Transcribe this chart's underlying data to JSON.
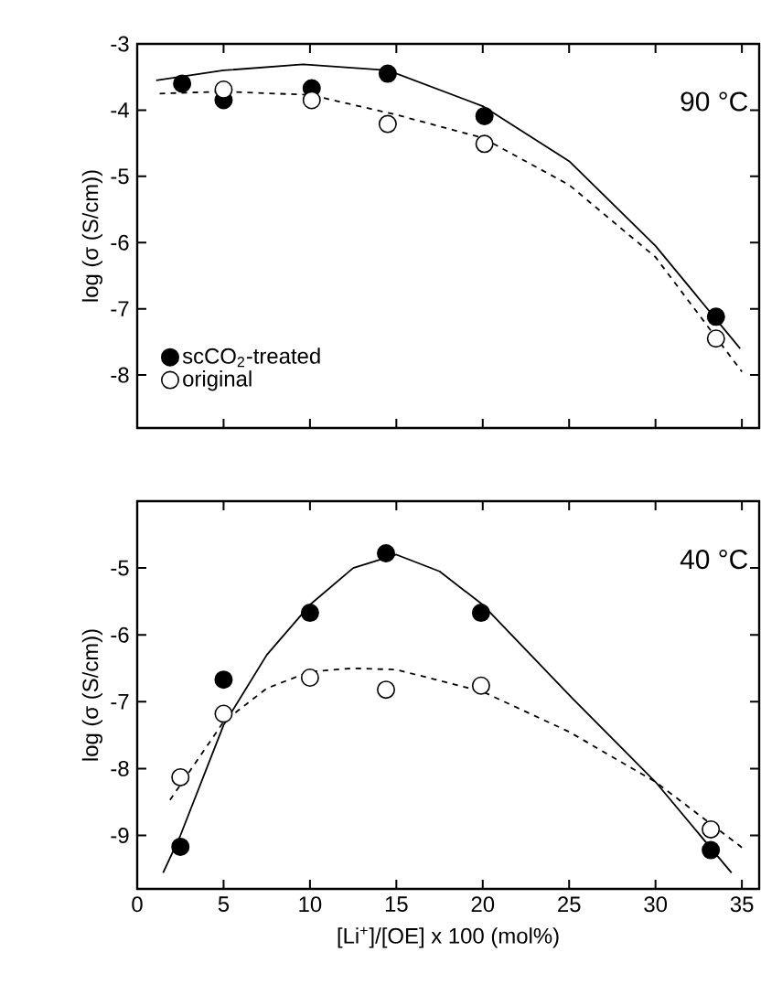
{
  "chart_data": [
    {
      "type": "scatter",
      "ylabel": "log (σ (S/cm))",
      "xlim": [
        0,
        36
      ],
      "xticks": [
        0,
        5,
        10,
        15,
        20,
        25,
        30,
        35
      ],
      "ylim": [
        -8.8,
        -3
      ],
      "yticks": [
        -3,
        -4,
        -5,
        -6,
        -7,
        -8
      ],
      "tick_labels": "y",
      "legend": "bottom left",
      "marker": "circle",
      "annotations": [
        "90 °C"
      ],
      "series": [
        {
          "name": "scCO$_{2}$-treated",
          "color": "#000000",
          "x": [
            2.6,
            5.0,
            10.1,
            14.5,
            20.1,
            33.5
          ],
          "values": [
            -3.6,
            -3.85,
            -3.67,
            -3.45,
            -4.09,
            -7.12
          ]
        },
        {
          "name": "original",
          "color": "#ffffff",
          "x": [
            5.0,
            10.1,
            14.5,
            20.1,
            33.5
          ],
          "values": [
            -3.69,
            -3.85,
            -4.21,
            -4.51,
            -7.45
          ]
        },
        {
          "type": "line",
          "marker": "none",
          "line_style": "solid",
          "color": "#000000",
          "x": [
            1.1,
            5,
            9.6,
            14.5,
            20,
            25,
            30,
            34.9
          ],
          "values": [
            -3.55,
            -3.4,
            -3.31,
            -3.4,
            -3.94,
            -4.77,
            -6.05,
            -7.6
          ]
        },
        {
          "type": "line",
          "marker": "none",
          "line_style": "dashed",
          "color": "#000000",
          "x": [
            1.3,
            5,
            10,
            15,
            20,
            25,
            30,
            35
          ],
          "values": [
            -3.75,
            -3.72,
            -3.77,
            -4.07,
            -4.42,
            -5.13,
            -6.22,
            -7.95
          ]
        }
      ]
    },
    {
      "type": "scatter",
      "xlabel": "[Li$^{+}$]/[OE] x 100 (mol%)",
      "ylabel": "log (σ (S/cm))",
      "xlim": [
        0,
        36
      ],
      "xticks": [
        0,
        5,
        10,
        15,
        20,
        25,
        30,
        35
      ],
      "ylim": [
        -9.8,
        -4.0
      ],
      "yticks": [
        -5,
        -6,
        -7,
        -8,
        -9
      ],
      "marker": "circle",
      "annotations": [
        "40 °C"
      ],
      "series": [
        {
          "color": "#000000",
          "x": [
            2.5,
            5.0,
            10.0,
            14.4,
            19.9,
            33.2
          ],
          "values": [
            -9.17,
            -6.67,
            -5.67,
            -4.78,
            -5.67,
            -9.22
          ]
        },
        {
          "color": "#ffffff",
          "x": [
            2.5,
            5.0,
            10.0,
            14.4,
            19.9,
            33.2
          ],
          "values": [
            -8.13,
            -7.18,
            -6.64,
            -6.82,
            -6.76,
            -8.91
          ]
        },
        {
          "type": "line",
          "marker": "none",
          "line_style": "solid",
          "color": "#000000",
          "x": [
            1.5,
            2.5,
            5,
            7.5,
            10,
            12.5,
            15,
            17.5,
            20,
            25,
            30,
            34.4
          ],
          "values": [
            -9.56,
            -9.0,
            -7.35,
            -6.3,
            -5.55,
            -5.0,
            -4.8,
            -5.05,
            -5.55,
            -6.9,
            -8.2,
            -9.56
          ]
        },
        {
          "type": "line",
          "marker": "none",
          "line_style": "dashed",
          "color": "#000000",
          "x": [
            1.9,
            5,
            7.5,
            10,
            12.5,
            15,
            20,
            25,
            30,
            35
          ],
          "values": [
            -8.47,
            -7.3,
            -6.8,
            -6.55,
            -6.5,
            -6.52,
            -6.85,
            -7.45,
            -8.2,
            -9.18
          ]
        }
      ]
    }
  ]
}
